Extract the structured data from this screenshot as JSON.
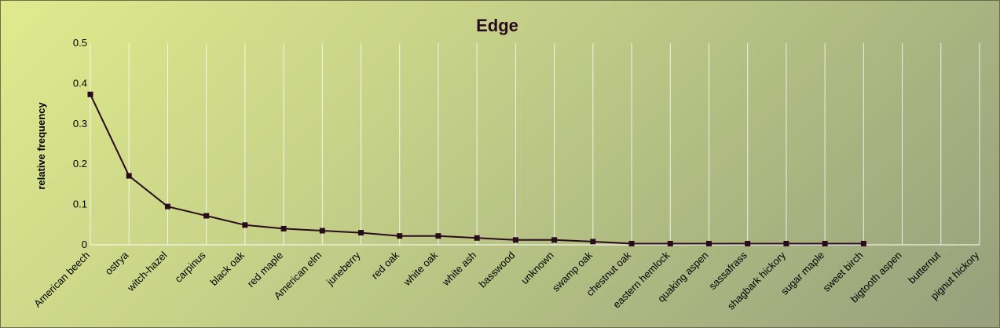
{
  "chart_data": {
    "type": "line",
    "title": "Edge",
    "ylabel": "relative frequency",
    "xlabel": "",
    "ylim": [
      0,
      0.5
    ],
    "yticks": [
      0,
      0.1,
      0.2,
      0.3,
      0.4,
      0.5
    ],
    "ytick_labels": [
      "0",
      "0.1",
      "0.2",
      "0.3",
      "0.4",
      "0.5"
    ],
    "grid": "vertical",
    "legend": "none",
    "colors": {
      "line": "#2a0b1c",
      "marker": "#2a0b1c",
      "grid": "#ffffff"
    },
    "categories": [
      "American beech",
      "ostrya",
      "witch-hazel",
      "carpinus",
      "black oak",
      "red maple",
      "American elm",
      "juneberry",
      "red oak",
      "white oak",
      "white ash",
      "basswood",
      "unknown",
      "swamp oak",
      "chestnut oak",
      "eastern hemlock",
      "quaking aspen",
      "sassafrass",
      "shagbark hickory",
      "sugar maple",
      "sweet birch",
      "bigtooth aspen",
      "butternut",
      "pignut hickory"
    ],
    "values": [
      0.373,
      0.171,
      0.095,
      0.072,
      0.049,
      0.04,
      0.035,
      0.03,
      0.022,
      0.022,
      0.017,
      0.012,
      0.012,
      0.008,
      0.003,
      0.003,
      0.003,
      0.003,
      0.003,
      0.003,
      0.003,
      null,
      null,
      null
    ]
  }
}
